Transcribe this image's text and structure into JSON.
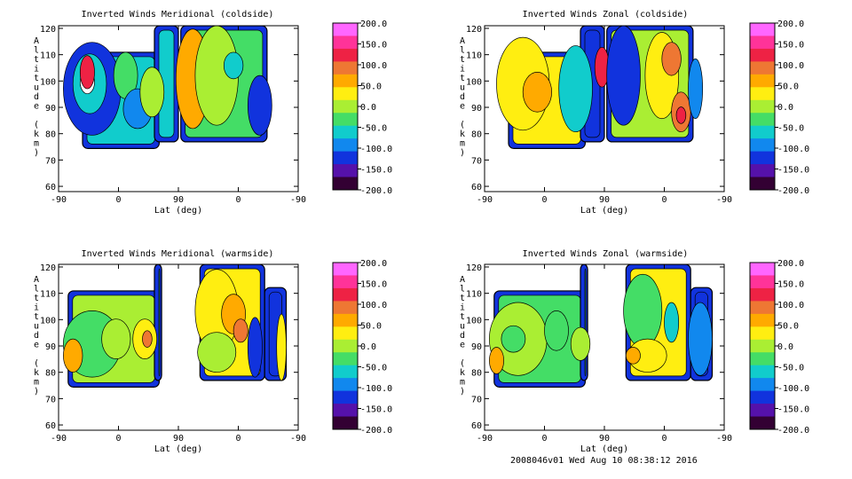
{
  "chart_data": [
    {
      "type": "heatmap",
      "title": "Inverted Winds Meridional (coldside)",
      "xlabel": "Lat (deg)",
      "ylabel": "Altitude (km)",
      "x_ticks": [
        "-90",
        "0",
        "90",
        "0",
        "-90"
      ],
      "y_ticks": [
        "60",
        "70",
        "80",
        "90",
        "100",
        "110",
        "120"
      ],
      "ylim": [
        58,
        121
      ],
      "colorbar_ticks": [
        "200.0",
        "150.0",
        "100.0",
        "50.0",
        "0.0",
        "-50.0",
        "-100.0",
        "-150.0",
        "-200.0"
      ],
      "colorbar_range": [
        -200,
        200
      ]
    },
    {
      "type": "heatmap",
      "title": "Inverted Winds Zonal (coldside)",
      "xlabel": "Lat (deg)",
      "ylabel": "Altitude (km)",
      "x_ticks": [
        "-90",
        "0",
        "90",
        "0",
        "-90"
      ],
      "y_ticks": [
        "60",
        "70",
        "80",
        "90",
        "100",
        "110",
        "120"
      ],
      "ylim": [
        58,
        121
      ],
      "colorbar_ticks": [
        "200.0",
        "150.0",
        "100.0",
        "50.0",
        "0.0",
        "-50.0",
        "-100.0",
        "-150.0",
        "-200.0"
      ],
      "colorbar_range": [
        -200,
        200
      ]
    },
    {
      "type": "heatmap",
      "title": "Inverted Winds Meridional (warmside)",
      "xlabel": "Lat (deg)",
      "ylabel": "Altitude (km)",
      "x_ticks": [
        "-90",
        "0",
        "90",
        "0",
        "-90"
      ],
      "y_ticks": [
        "60",
        "70",
        "80",
        "90",
        "100",
        "110",
        "120"
      ],
      "ylim": [
        58,
        121
      ],
      "colorbar_ticks": [
        "200.0",
        "150.0",
        "100.0",
        "50.0",
        "0.0",
        "-50.0",
        "-100.0",
        "-150.0",
        "-200.0"
      ],
      "colorbar_range": [
        -200,
        200
      ]
    },
    {
      "type": "heatmap",
      "title": "Inverted Winds Zonal (warmside)",
      "xlabel": "Lat (deg)",
      "ylabel": "Altitude (km)",
      "x_ticks": [
        "-90",
        "0",
        "90",
        "0",
        "-90"
      ],
      "y_ticks": [
        "60",
        "70",
        "80",
        "90",
        "100",
        "110",
        "120"
      ],
      "ylim": [
        58,
        121
      ],
      "colorbar_ticks": [
        "200.0",
        "150.0",
        "100.0",
        "50.0",
        "0.0",
        "-50.0",
        "-100.0",
        "-150.0",
        "-200.0"
      ],
      "colorbar_range": [
        -200,
        200
      ]
    }
  ],
  "colorbar_colors": [
    "#ff66ff",
    "#ff3399",
    "#ee2244",
    "#ee7733",
    "#ffaa00",
    "#ffee11",
    "#aaee33",
    "#44dd66",
    "#11cccc",
    "#1188ee",
    "#1133dd",
    "#5511aa",
    "#330033"
  ],
  "footer": "2008046v01 Wed Aug 10 08:38:12 2016"
}
